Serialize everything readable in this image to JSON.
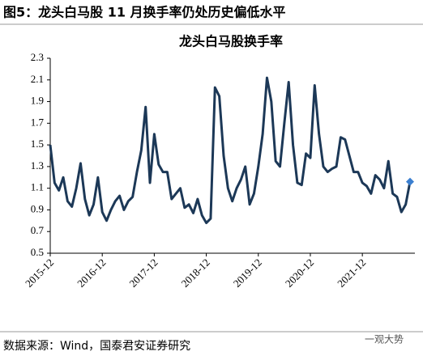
{
  "chart_data": {
    "type": "line",
    "caption": "图5：龙头白马股 11 月换手率仍处历史偏低水平",
    "title": "龙头白马股换手率",
    "source": "数据来源：Wind，国泰君安证券研究",
    "watermark": "一观大势",
    "categories": [
      "2015-12",
      null,
      null,
      null,
      null,
      null,
      null,
      null,
      null,
      null,
      null,
      null,
      "2016-12",
      null,
      null,
      null,
      null,
      null,
      null,
      null,
      null,
      null,
      null,
      null,
      "2017-12",
      null,
      null,
      null,
      null,
      null,
      null,
      null,
      null,
      null,
      null,
      null,
      "2018-12",
      null,
      null,
      null,
      null,
      null,
      null,
      null,
      null,
      null,
      null,
      null,
      "2019-12",
      null,
      null,
      null,
      null,
      null,
      null,
      null,
      null,
      null,
      null,
      null,
      "2020-12",
      null,
      null,
      null,
      null,
      null,
      null,
      null,
      null,
      null,
      null,
      null,
      "2021-12",
      null,
      null,
      null,
      null,
      null,
      null,
      null,
      null,
      null,
      null,
      null
    ],
    "series": [
      {
        "name": "龙头白马股换手率",
        "color": "#1c3857",
        "values": [
          1.5,
          1.15,
          1.08,
          1.2,
          0.98,
          0.93,
          1.1,
          1.33,
          1.0,
          0.85,
          0.95,
          1.2,
          0.88,
          0.8,
          0.9,
          0.98,
          1.03,
          0.9,
          0.98,
          1.02,
          1.25,
          1.45,
          1.85,
          1.15,
          1.6,
          1.32,
          1.25,
          1.25,
          1.0,
          1.05,
          1.1,
          0.92,
          0.95,
          0.87,
          1.0,
          0.85,
          0.78,
          0.82,
          2.03,
          1.95,
          1.4,
          1.1,
          0.98,
          1.1,
          1.18,
          1.3,
          0.95,
          1.05,
          1.3,
          1.6,
          2.12,
          1.9,
          1.35,
          1.3,
          1.7,
          2.08,
          1.5,
          1.15,
          1.13,
          1.42,
          1.38,
          2.05,
          1.6,
          1.3,
          1.25,
          1.28,
          1.3,
          1.57,
          1.55,
          1.4,
          1.25,
          1.25,
          1.15,
          1.12,
          1.05,
          1.22,
          1.18,
          1.1,
          1.35,
          1.05,
          1.02,
          0.88,
          0.95,
          1.16
        ]
      }
    ],
    "last_marker_color": "#3b7fd0",
    "ylim": [
      0.5,
      2.3
    ],
    "yticks": [
      0.5,
      0.7,
      0.9,
      1.1,
      1.3,
      1.5,
      1.7,
      1.9,
      2.1,
      2.3
    ],
    "grid": false
  }
}
